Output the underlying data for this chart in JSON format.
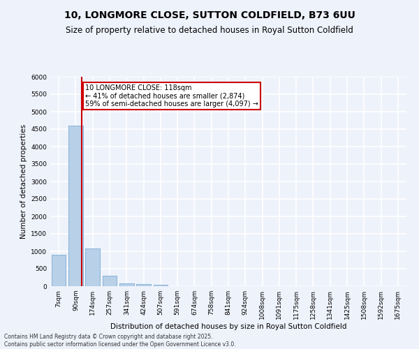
{
  "title": "10, LONGMORE CLOSE, SUTTON COLDFIELD, B73 6UU",
  "subtitle": "Size of property relative to detached houses in Royal Sutton Coldfield",
  "xlabel": "Distribution of detached houses by size in Royal Sutton Coldfield",
  "ylabel": "Number of detached properties",
  "bar_color": "#b8d0e8",
  "bar_edge_color": "#7aadd4",
  "categories": [
    "7sqm",
    "90sqm",
    "174sqm",
    "257sqm",
    "341sqm",
    "424sqm",
    "507sqm",
    "591sqm",
    "674sqm",
    "758sqm",
    "841sqm",
    "924sqm",
    "1008sqm",
    "1091sqm",
    "1175sqm",
    "1258sqm",
    "1341sqm",
    "1425sqm",
    "1508sqm",
    "1592sqm",
    "1675sqm"
  ],
  "values": [
    900,
    4600,
    1080,
    295,
    75,
    55,
    40,
    0,
    0,
    0,
    0,
    0,
    0,
    0,
    0,
    0,
    0,
    0,
    0,
    0,
    0
  ],
  "ylim": [
    0,
    6000
  ],
  "yticks": [
    0,
    500,
    1000,
    1500,
    2000,
    2500,
    3000,
    3500,
    4000,
    4500,
    5000,
    5500,
    6000
  ],
  "property_line_x": 1.35,
  "property_line_label": "10 LONGMORE CLOSE: 118sqm",
  "annotation_line1": "← 41% of detached houses are smaller (2,874)",
  "annotation_line2": "59% of semi-detached houses are larger (4,097) →",
  "annotation_box_color": "#ffffff",
  "annotation_box_edge_color": "#cc0000",
  "footer": "Contains HM Land Registry data © Crown copyright and database right 2025.\nContains public sector information licensed under the Open Government Licence v3.0.",
  "background_color": "#eef2fb",
  "grid_color": "#ffffff",
  "title_fontsize": 10,
  "subtitle_fontsize": 8.5,
  "axis_label_fontsize": 7.5,
  "tick_fontsize": 6.5,
  "annotation_fontsize": 7,
  "footer_fontsize": 5.5
}
